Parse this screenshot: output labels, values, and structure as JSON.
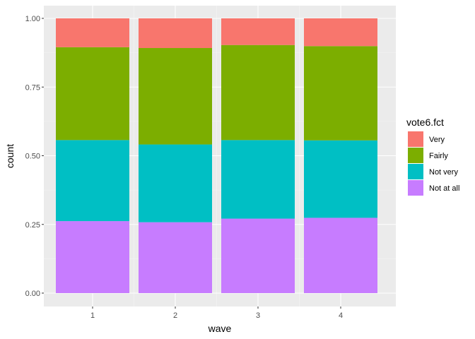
{
  "chart_data": {
    "type": "bar",
    "stacked": true,
    "position": "fill",
    "categories": [
      "1",
      "2",
      "3",
      "4"
    ],
    "xlabel": "wave",
    "ylabel": "count",
    "ylim": [
      0,
      1
    ],
    "yticks": [
      "0.00",
      "0.25",
      "0.50",
      "0.75",
      "1.00"
    ],
    "ytick_values": [
      0,
      0.25,
      0.5,
      0.75,
      1.0
    ],
    "grid": true,
    "legend": {
      "title": "vote6.fct",
      "placement": "right",
      "entries": [
        "Very",
        "Fairly",
        "Not very",
        "Not at all"
      ]
    },
    "series": [
      {
        "name": "Not at all",
        "color": "#C77CFF",
        "values": [
          0.262,
          0.258,
          0.271,
          0.274
        ]
      },
      {
        "name": "Not very",
        "color": "#00BFC4",
        "values": [
          0.295,
          0.283,
          0.286,
          0.282
        ]
      },
      {
        "name": "Fairly",
        "color": "#7CAE00",
        "values": [
          0.338,
          0.351,
          0.346,
          0.343
        ]
      },
      {
        "name": "Very",
        "color": "#F8766D",
        "values": [
          0.105,
          0.108,
          0.097,
          0.101
        ]
      }
    ],
    "colors": {
      "panel_background": "#EBEBEB",
      "grid_major": "#FFFFFF",
      "grid_minor": "#F5F5F5",
      "tick_text": "#4D4D4D",
      "tick_mark": "#333333"
    }
  }
}
